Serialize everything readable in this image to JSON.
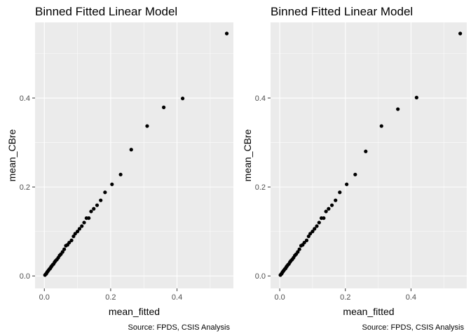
{
  "colors": {
    "panel_background": "#ebebeb",
    "grid_major": "#ffffff",
    "point": "#000000",
    "tick_text": "#4d4d4d",
    "tick_mark": "#333333"
  },
  "chart_data": [
    {
      "type": "scatter",
      "title": "Binned Fitted Linear Model",
      "xlabel": "mean_fitted",
      "ylabel": "mean_CBre",
      "caption": "Source: FPDS, CSIS Analysis",
      "xlim": [
        -0.028,
        0.57
      ],
      "ylim": [
        -0.028,
        0.57
      ],
      "x_ticks": [
        0.0,
        0.2,
        0.4
      ],
      "x_tick_labels": [
        "0.0",
        "0.2",
        "0.4"
      ],
      "y_ticks": [
        0.0,
        0.2,
        0.4
      ],
      "y_tick_labels": [
        "0.0",
        "0.2",
        "0.4"
      ],
      "grid": true,
      "points": [
        [
          0.002,
          0.002
        ],
        [
          0.004,
          0.004
        ],
        [
          0.006,
          0.005
        ],
        [
          0.008,
          0.008
        ],
        [
          0.01,
          0.01
        ],
        [
          0.012,
          0.012
        ],
        [
          0.014,
          0.014
        ],
        [
          0.016,
          0.016
        ],
        [
          0.018,
          0.017
        ],
        [
          0.02,
          0.02
        ],
        [
          0.022,
          0.022
        ],
        [
          0.025,
          0.025
        ],
        [
          0.028,
          0.027
        ],
        [
          0.031,
          0.031
        ],
        [
          0.034,
          0.034
        ],
        [
          0.038,
          0.037
        ],
        [
          0.042,
          0.041
        ],
        [
          0.046,
          0.046
        ],
        [
          0.05,
          0.049
        ],
        [
          0.055,
          0.054
        ],
        [
          0.06,
          0.06
        ],
        [
          0.065,
          0.068
        ],
        [
          0.07,
          0.07
        ],
        [
          0.075,
          0.075
        ],
        [
          0.082,
          0.08
        ],
        [
          0.088,
          0.089
        ],
        [
          0.093,
          0.095
        ],
        [
          0.1,
          0.1
        ],
        [
          0.106,
          0.106
        ],
        [
          0.113,
          0.112
        ],
        [
          0.12,
          0.12
        ],
        [
          0.127,
          0.13
        ],
        [
          0.134,
          0.13
        ],
        [
          0.141,
          0.145
        ],
        [
          0.149,
          0.151
        ],
        [
          0.159,
          0.159
        ],
        [
          0.17,
          0.17
        ],
        [
          0.183,
          0.188
        ],
        [
          0.204,
          0.206
        ],
        [
          0.23,
          0.228
        ],
        [
          0.262,
          0.284
        ],
        [
          0.31,
          0.337
        ],
        [
          0.36,
          0.379
        ],
        [
          0.417,
          0.399
        ],
        [
          0.55,
          0.545
        ]
      ]
    },
    {
      "type": "scatter",
      "title": "Binned Fitted Linear Model",
      "xlabel": "mean_fitted",
      "ylabel": "mean_CBre",
      "caption": "Source: FPDS, CSIS Analysis",
      "xlim": [
        -0.028,
        0.57
      ],
      "ylim": [
        -0.028,
        0.57
      ],
      "x_ticks": [
        0.0,
        0.2,
        0.4
      ],
      "x_tick_labels": [
        "0.0",
        "0.2",
        "0.4"
      ],
      "y_ticks": [
        0.0,
        0.2,
        0.4
      ],
      "y_tick_labels": [
        "0.0",
        "0.2",
        "0.4"
      ],
      "grid": true,
      "points": [
        [
          0.002,
          0.002
        ],
        [
          0.004,
          0.004
        ],
        [
          0.006,
          0.005
        ],
        [
          0.008,
          0.008
        ],
        [
          0.01,
          0.01
        ],
        [
          0.012,
          0.012
        ],
        [
          0.014,
          0.014
        ],
        [
          0.016,
          0.016
        ],
        [
          0.018,
          0.017
        ],
        [
          0.02,
          0.02
        ],
        [
          0.022,
          0.022
        ],
        [
          0.025,
          0.025
        ],
        [
          0.028,
          0.027
        ],
        [
          0.031,
          0.031
        ],
        [
          0.034,
          0.034
        ],
        [
          0.038,
          0.037
        ],
        [
          0.042,
          0.041
        ],
        [
          0.046,
          0.046
        ],
        [
          0.05,
          0.049
        ],
        [
          0.055,
          0.054
        ],
        [
          0.06,
          0.06
        ],
        [
          0.065,
          0.068
        ],
        [
          0.07,
          0.07
        ],
        [
          0.075,
          0.075
        ],
        [
          0.082,
          0.08
        ],
        [
          0.088,
          0.089
        ],
        [
          0.093,
          0.095
        ],
        [
          0.1,
          0.1
        ],
        [
          0.106,
          0.106
        ],
        [
          0.113,
          0.112
        ],
        [
          0.12,
          0.12
        ],
        [
          0.127,
          0.13
        ],
        [
          0.134,
          0.13
        ],
        [
          0.141,
          0.145
        ],
        [
          0.149,
          0.151
        ],
        [
          0.159,
          0.159
        ],
        [
          0.17,
          0.17
        ],
        [
          0.183,
          0.188
        ],
        [
          0.204,
          0.206
        ],
        [
          0.23,
          0.228
        ],
        [
          0.262,
          0.28
        ],
        [
          0.31,
          0.337
        ],
        [
          0.36,
          0.375
        ],
        [
          0.417,
          0.401
        ],
        [
          0.55,
          0.545
        ]
      ]
    }
  ]
}
